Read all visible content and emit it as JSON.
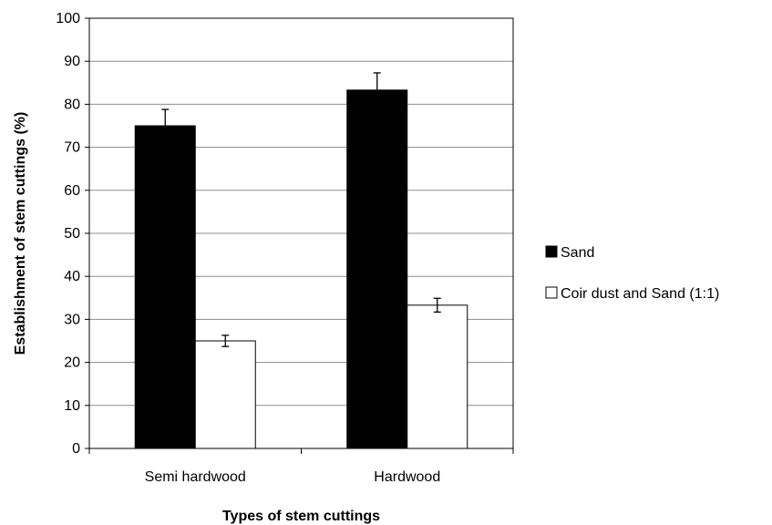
{
  "chart_data": {
    "type": "bar",
    "categories": [
      "Semi hardwood",
      "Hardwood"
    ],
    "series": [
      {
        "name": "Sand",
        "values": [
          75,
          83.3
        ],
        "errors": [
          3.8,
          4.0
        ],
        "color": "#000000"
      },
      {
        "name": "Coir dust and Sand (1:1)",
        "values": [
          25,
          33.3
        ],
        "errors": [
          1.3,
          1.6
        ],
        "color": "#ffffff"
      }
    ],
    "xlabel": "Types of stem cuttings",
    "ylabel": "Establishment of stem cuttings (%)",
    "ylim": [
      0,
      100
    ],
    "yticks": [
      "0",
      "10",
      "20",
      "30",
      "40",
      "50",
      "60",
      "70",
      "80",
      "90",
      "100"
    ],
    "grid": true,
    "legend_position": "right"
  }
}
